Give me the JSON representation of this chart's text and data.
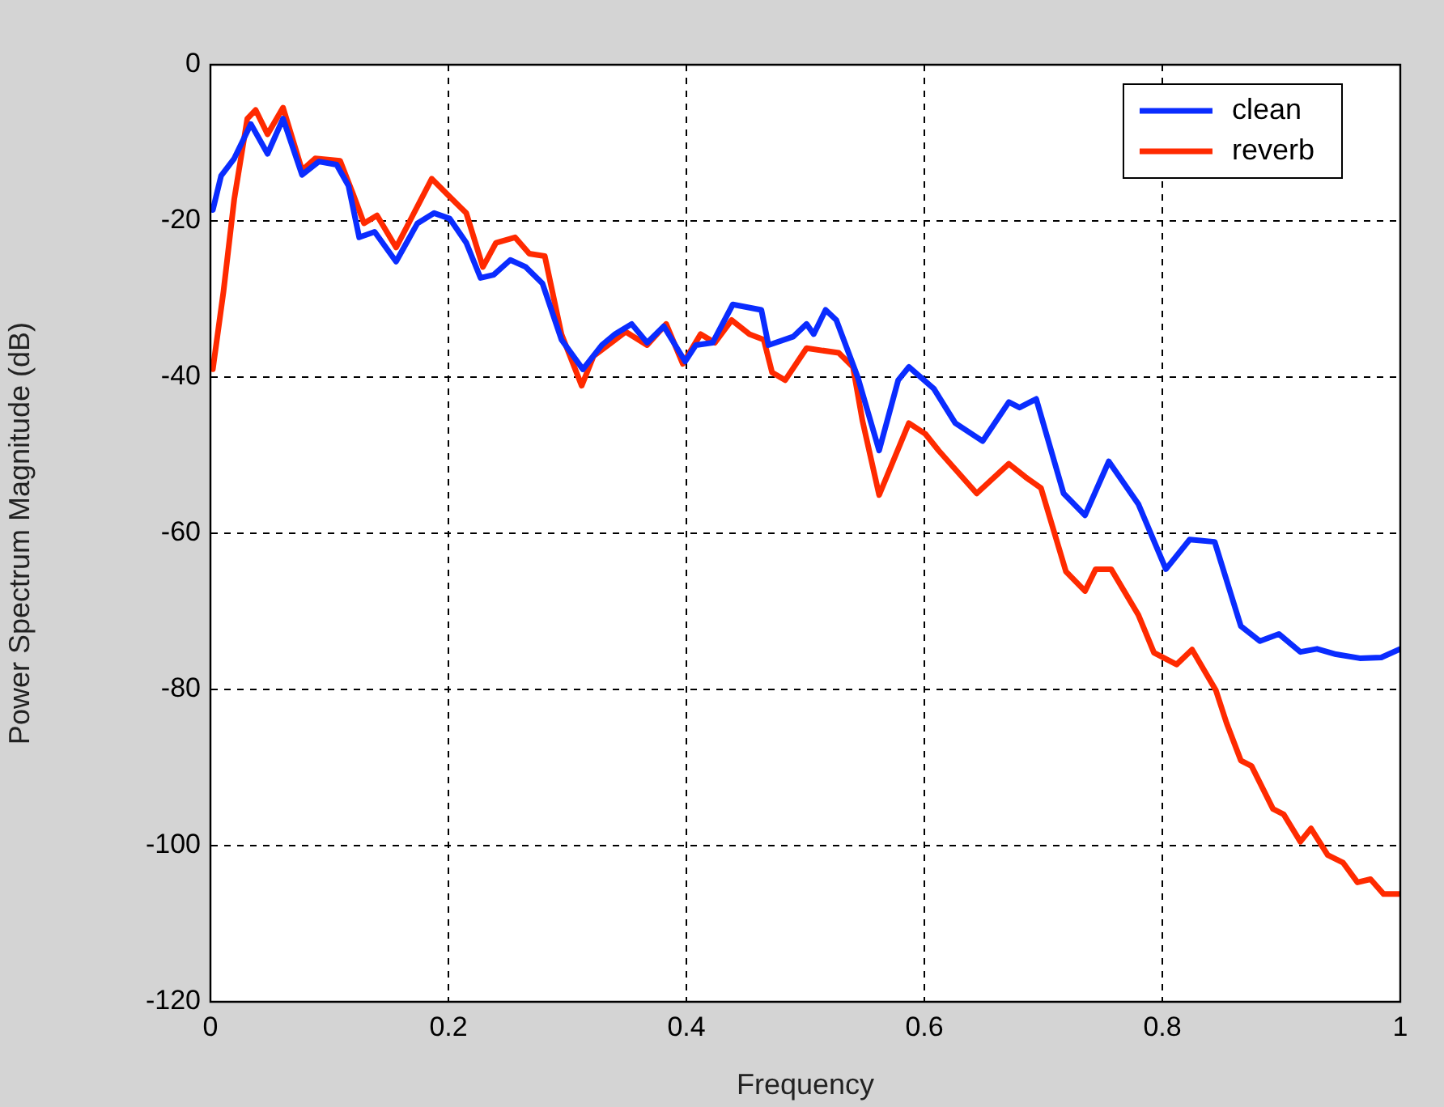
{
  "chart_data": {
    "type": "line",
    "xlabel": "Frequency",
    "ylabel": "Power Spectrum Magnitude (dB)",
    "xlim": [
      0,
      1
    ],
    "xticks": [
      0,
      0.2,
      0.4,
      0.6,
      0.8,
      1
    ],
    "ylim": [
      -120,
      0
    ],
    "yticks": [
      -120,
      -100,
      -80,
      -60,
      -40,
      -20,
      0
    ],
    "grid": true,
    "legend": "top right",
    "line_style": "solid",
    "marker": "none",
    "series": [
      {
        "name": "clean",
        "color": "#0a2cff",
        "x": [
          0.002,
          0.009,
          0.02,
          0.034,
          0.048,
          0.061,
          0.077,
          0.091,
          0.106,
          0.116,
          0.125,
          0.138,
          0.156,
          0.174,
          0.188,
          0.201,
          0.215,
          0.227,
          0.238,
          0.252,
          0.265,
          0.279,
          0.295,
          0.313,
          0.329,
          0.34,
          0.354,
          0.367,
          0.381,
          0.399,
          0.408,
          0.422,
          0.439,
          0.463,
          0.469,
          0.49,
          0.501,
          0.507,
          0.517,
          0.526,
          0.544,
          0.562,
          0.578,
          0.587,
          0.608,
          0.626,
          0.649,
          0.671,
          0.68,
          0.694,
          0.717,
          0.735,
          0.755,
          0.78,
          0.803,
          0.823,
          0.844,
          0.866,
          0.882,
          0.898,
          0.916,
          0.93,
          0.946,
          0.966,
          0.984,
          1
        ],
        "values": [
          -18.6,
          -14.2,
          -12,
          -7.6,
          -11.4,
          -6.9,
          -14.1,
          -12.4,
          -12.8,
          -15.5,
          -22.1,
          -21.4,
          -25.2,
          -20.3,
          -19,
          -19.7,
          -22.8,
          -27.3,
          -26.9,
          -25,
          -25.9,
          -28,
          -35.2,
          -39,
          -35.9,
          -34.5,
          -33.2,
          -35.6,
          -33.5,
          -38,
          -35.9,
          -35.6,
          -30.7,
          -31.4,
          -35.9,
          -34.8,
          -33.2,
          -34.5,
          -31.4,
          -32.7,
          -40,
          -49.4,
          -40.4,
          -38.7,
          -41.5,
          -45.9,
          -48.2,
          -43.2,
          -43.9,
          -42.8,
          -54.9,
          -57.7,
          -50.8,
          -56.3,
          -64.6,
          -60.8,
          -61.1,
          -71.9,
          -73.8,
          -72.9,
          -75.2,
          -74.8,
          -75.5,
          -76,
          -75.9,
          -74.8
        ]
      },
      {
        "name": "reverb",
        "color": "#ff2a00",
        "x": [
          0.002,
          0.011,
          0.02,
          0.031,
          0.038,
          0.048,
          0.061,
          0.077,
          0.088,
          0.109,
          0.12,
          0.129,
          0.14,
          0.156,
          0.17,
          0.186,
          0.201,
          0.215,
          0.229,
          0.24,
          0.256,
          0.268,
          0.281,
          0.295,
          0.312,
          0.322,
          0.349,
          0.367,
          0.383,
          0.397,
          0.412,
          0.424,
          0.438,
          0.453,
          0.465,
          0.472,
          0.483,
          0.501,
          0.528,
          0.54,
          0.548,
          0.562,
          0.587,
          0.601,
          0.612,
          0.644,
          0.671,
          0.685,
          0.698,
          0.719,
          0.735,
          0.744,
          0.757,
          0.78,
          0.793,
          0.812,
          0.825,
          0.845,
          0.854,
          0.866,
          0.875,
          0.893,
          0.902,
          0.916,
          0.925,
          0.939,
          0.952,
          0.964,
          0.975,
          0.986,
          1
        ],
        "values": [
          -39,
          -29,
          -17.2,
          -6.9,
          -5.8,
          -8.9,
          -5.5,
          -13.5,
          -12,
          -12.3,
          -16.6,
          -20.3,
          -19.3,
          -23.4,
          -19.3,
          -14.6,
          -16.9,
          -19,
          -25.9,
          -22.8,
          -22.1,
          -24.2,
          -24.5,
          -34.5,
          -41.1,
          -37.3,
          -34.2,
          -35.9,
          -33.2,
          -38.3,
          -34.5,
          -35.6,
          -32.7,
          -34.5,
          -35.2,
          -39.4,
          -40.4,
          -36.3,
          -36.9,
          -38.7,
          -45.6,
          -55.1,
          -45.9,
          -47.3,
          -49.4,
          -54.9,
          -51.1,
          -52.8,
          -54.2,
          -64.9,
          -67.4,
          -64.6,
          -64.6,
          -70.5,
          -75.3,
          -76.8,
          -74.9,
          -80.1,
          -84.3,
          -89.1,
          -89.8,
          -95.3,
          -96,
          -99.5,
          -97.8,
          -101.2,
          -102.2,
          -104.7,
          -104.3,
          -106.2,
          -106.2
        ]
      }
    ]
  }
}
